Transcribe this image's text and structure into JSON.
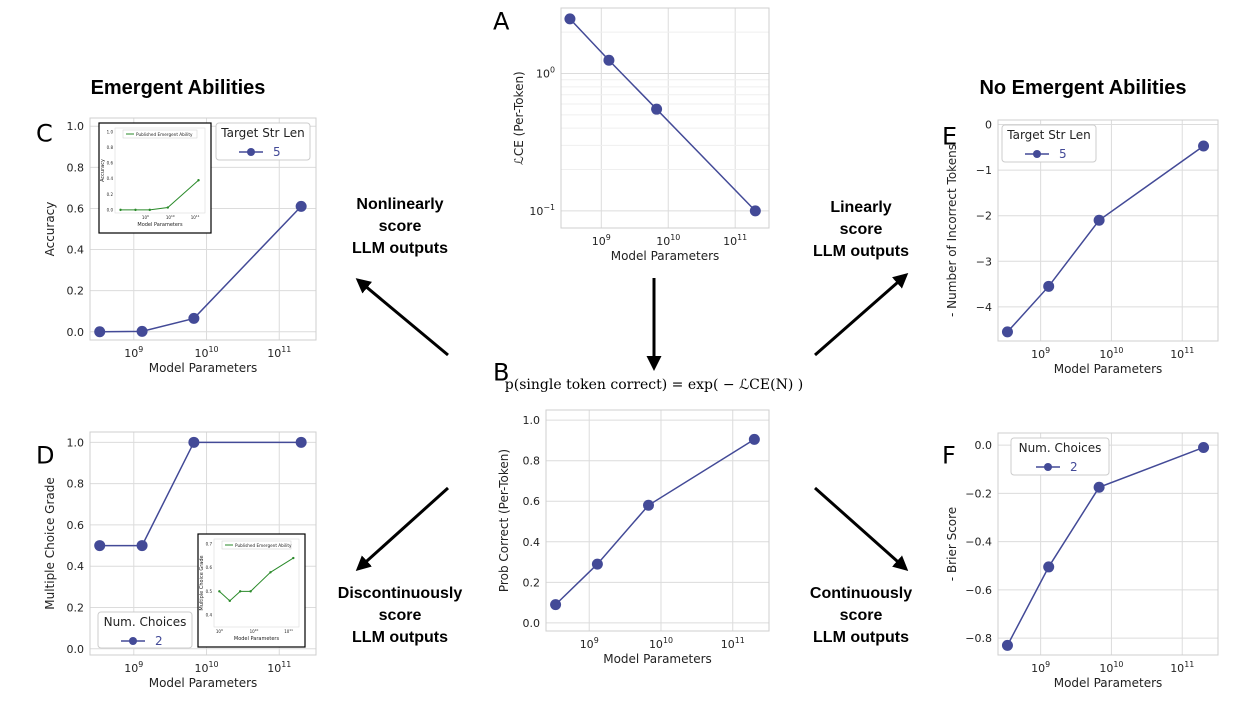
{
  "headings": {
    "left": "Emergent Abilities",
    "right": "No Emergent Abilities"
  },
  "arrow_labels": {
    "nonlinear": [
      "Nonlinearly",
      "score",
      "LLM outputs"
    ],
    "linear": [
      "Linearly",
      "score",
      "LLM outputs"
    ],
    "discontinuous": [
      "Discontinuously",
      "score",
      "LLM outputs"
    ],
    "continuous": [
      "Continuously",
      "score",
      "LLM outputs"
    ]
  },
  "formula": "p(single token correct) = exp( − ℒCE(N) )",
  "colors": {
    "series": "#434a97",
    "inset": "#2a8a2a",
    "grid": "#dcdcdc",
    "axis": "#333333"
  },
  "chart_data": [
    {
      "id": "A",
      "panel_label": "A",
      "type": "line",
      "yscale": "log",
      "xlabel": "Model Parameters",
      "ylabel": "ℒCE (Per-Token)",
      "x": [
        340000000,
        1300000000,
        6700000000,
        200000000000
      ],
      "y": [
        2.5,
        1.25,
        0.55,
        0.1
      ],
      "xlim": [
        250000000,
        320000000000
      ],
      "ylim": [
        0.075,
        3.0
      ],
      "xticks": [
        1000000000,
        10000000000,
        100000000000
      ],
      "xticklabels": [
        "10^9",
        "10^10",
        "10^11"
      ],
      "yticks": [
        0.1,
        1.0
      ],
      "yticklabels": [
        "10^−1",
        "10^0"
      ]
    },
    {
      "id": "B",
      "panel_label": "B",
      "type": "line",
      "xlabel": "Model Parameters",
      "ylabel": "Prob Correct (Per-Token)",
      "x": [
        340000000,
        1300000000,
        6700000000,
        200000000000
      ],
      "y": [
        0.09,
        0.29,
        0.58,
        0.905
      ],
      "xlim": [
        250000000,
        320000000000
      ],
      "ylim": [
        -0.04,
        1.05
      ],
      "xticks": [
        1000000000,
        10000000000,
        100000000000
      ],
      "xticklabels": [
        "10^9",
        "10^10",
        "10^11"
      ],
      "yticks": [
        0.0,
        0.2,
        0.4,
        0.6,
        0.8,
        1.0
      ],
      "yticklabels": [
        "0.0",
        "0.2",
        "0.4",
        "0.6",
        "0.8",
        "1.0"
      ]
    },
    {
      "id": "C",
      "panel_label": "C",
      "type": "line",
      "xlabel": "Model Parameters",
      "ylabel": "Accuracy",
      "x": [
        340000000,
        1300000000,
        6700000000,
        200000000000
      ],
      "y": [
        0.0,
        0.002,
        0.065,
        0.61
      ],
      "xlim": [
        250000000,
        320000000000
      ],
      "ylim": [
        -0.04,
        1.04
      ],
      "xticks": [
        1000000000,
        10000000000,
        100000000000
      ],
      "xticklabels": [
        "10^9",
        "10^10",
        "10^11"
      ],
      "yticks": [
        0.0,
        0.2,
        0.4,
        0.6,
        0.8,
        1.0
      ],
      "yticklabels": [
        "0.0",
        "0.2",
        "0.4",
        "0.6",
        "0.8",
        "1.0"
      ],
      "legend": {
        "title": "Target Str Len",
        "label": "5",
        "position": "top-right"
      },
      "inset": {
        "legend": "Published Emergent Ability",
        "xlabel": "Model Parameters",
        "ylabel": "Accuracy",
        "x": [
          100000000,
          400000000,
          1500000000,
          8000000000,
          137000000000
        ],
        "y": [
          0.0,
          0.0,
          0.0,
          0.03,
          0.38
        ],
        "xlim": [
          60000000,
          250000000000
        ],
        "ylim": [
          -0.04,
          1.05
        ],
        "xticks": [
          1000000000,
          10000000000,
          100000000000
        ],
        "xticklabels": [
          "10^9",
          "10^10",
          "10^11"
        ],
        "yticks": [
          0.0,
          0.2,
          0.4,
          0.6,
          0.8,
          1.0
        ],
        "yticklabels": [
          "0.0",
          "0.2",
          "0.4",
          "0.6",
          "0.8",
          "1.0"
        ],
        "position": "top-left"
      }
    },
    {
      "id": "D",
      "panel_label": "D",
      "type": "line",
      "xlabel": "Model Parameters",
      "ylabel": "Multiple Choice Grade",
      "x": [
        340000000,
        1300000000,
        6700000000,
        200000000000
      ],
      "y": [
        0.5,
        0.5,
        1.0,
        1.0
      ],
      "xlim": [
        250000000,
        320000000000
      ],
      "ylim": [
        -0.03,
        1.05
      ],
      "xticks": [
        1000000000,
        10000000000,
        100000000000
      ],
      "xticklabels": [
        "10^9",
        "10^10",
        "10^11"
      ],
      "yticks": [
        0.0,
        0.2,
        0.4,
        0.6,
        0.8,
        1.0
      ],
      "yticklabels": [
        "0.0",
        "0.2",
        "0.4",
        "0.6",
        "0.8",
        "1.0"
      ],
      "legend": {
        "title": "Num. Choices",
        "label": "2",
        "position": "bottom-left"
      },
      "inset": {
        "legend": "Published Emergent Ability",
        "xlabel": "Model Parameters",
        "ylabel": "Multiple Choice Grade",
        "x": [
          1000000000,
          2000000000,
          4000000000,
          8000000000,
          30000000000,
          137000000000
        ],
        "y": [
          0.5,
          0.46,
          0.5,
          0.5,
          0.58,
          0.64
        ],
        "xlim": [
          700000000,
          200000000000
        ],
        "ylim": [
          0.35,
          0.72
        ],
        "xticks": [
          1000000000,
          10000000000,
          100000000000
        ],
        "xticklabels": [
          "10^9",
          "10^10",
          "10^11"
        ],
        "yticks": [
          0.4,
          0.5,
          0.6,
          0.7
        ],
        "yticklabels": [
          "0.4",
          "0.5",
          "0.6",
          "0.7"
        ],
        "position": "bottom-right"
      }
    },
    {
      "id": "E",
      "panel_label": "E",
      "type": "line",
      "xlabel": "Model Parameters",
      "ylabel": "- Number of Incorrect Tokens",
      "x": [
        340000000,
        1300000000,
        6700000000,
        200000000000
      ],
      "y": [
        -4.55,
        -3.55,
        -2.1,
        -0.47
      ],
      "xlim": [
        250000000,
        320000000000
      ],
      "ylim": [
        -4.75,
        0.1
      ],
      "xticks": [
        1000000000,
        10000000000,
        100000000000
      ],
      "xticklabels": [
        "10^9",
        "10^10",
        "10^11"
      ],
      "yticks": [
        0,
        -1,
        -2,
        -3,
        -4
      ],
      "yticklabels": [
        "0",
        "−1",
        "−2",
        "−3",
        "−4"
      ],
      "legend": {
        "title": "Target Str Len",
        "label": "5",
        "position": "top-left"
      }
    },
    {
      "id": "F",
      "panel_label": "F",
      "type": "line",
      "xlabel": "Model Parameters",
      "ylabel": "- Brier Score",
      "x": [
        340000000,
        1300000000,
        6700000000,
        200000000000
      ],
      "y": [
        -0.83,
        -0.505,
        -0.175,
        -0.01
      ],
      "xlim": [
        250000000,
        320000000000
      ],
      "ylim": [
        -0.87,
        0.05
      ],
      "xticks": [
        1000000000,
        10000000000,
        100000000000
      ],
      "xticklabels": [
        "10^9",
        "10^10",
        "10^11"
      ],
      "yticks": [
        0.0,
        -0.2,
        -0.4,
        -0.6,
        -0.8
      ],
      "yticklabels": [
        "0.0",
        "−0.2",
        "−0.4",
        "−0.6",
        "−0.8"
      ],
      "legend": {
        "title": "Num. Choices",
        "label": "2",
        "position": "top-left"
      }
    }
  ]
}
